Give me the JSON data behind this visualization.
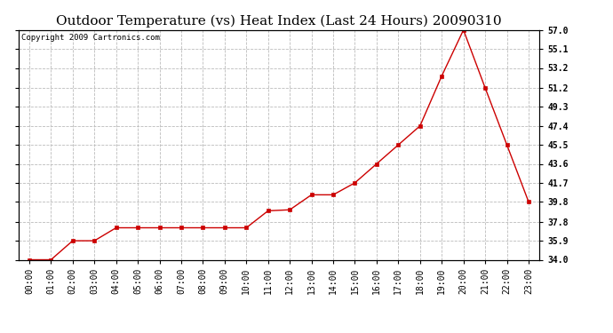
{
  "title": "Outdoor Temperature (vs) Heat Index (Last 24 Hours) 20090310",
  "copyright": "Copyright 2009 Cartronics.com",
  "line_color": "#cc0000",
  "marker": "s",
  "marker_color": "#cc0000",
  "marker_size": 3,
  "background_color": "#ffffff",
  "grid_color": "#bbbbbb",
  "x_labels": [
    "00:00",
    "01:00",
    "02:00",
    "03:00",
    "04:00",
    "05:00",
    "06:00",
    "07:00",
    "08:00",
    "09:00",
    "10:00",
    "11:00",
    "12:00",
    "13:00",
    "14:00",
    "15:00",
    "16:00",
    "17:00",
    "18:00",
    "19:00",
    "20:00",
    "21:00",
    "22:00",
    "23:00"
  ],
  "y_values": [
    34.0,
    34.0,
    35.9,
    35.9,
    37.2,
    37.2,
    37.2,
    37.2,
    37.2,
    37.2,
    37.2,
    38.9,
    39.0,
    40.5,
    40.5,
    41.7,
    43.6,
    45.5,
    47.4,
    52.4,
    57.0,
    51.2,
    45.5,
    39.8
  ],
  "ylim_min": 34.0,
  "ylim_max": 57.0,
  "yticks": [
    34.0,
    35.9,
    37.8,
    39.8,
    41.7,
    43.6,
    45.5,
    47.4,
    49.3,
    51.2,
    53.2,
    55.1,
    57.0
  ],
  "ytick_labels": [
    "34.0",
    "35.9",
    "37.8",
    "39.8",
    "41.7",
    "43.6",
    "45.5",
    "47.4",
    "49.3",
    "51.2",
    "53.2",
    "55.1",
    "57.0"
  ],
  "title_fontsize": 11,
  "tick_fontsize": 7,
  "copyright_fontsize": 6.5
}
